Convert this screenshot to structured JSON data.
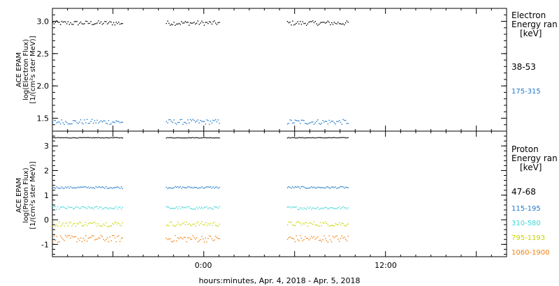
{
  "xlabel": "hours:minutes, Apr.  4, 2018 - Apr.  5, 2018",
  "x_tick_labels": [
    "0:00",
    "12:00"
  ],
  "chart_data": [
    {
      "type": "scatter",
      "panel": "electron",
      "ylabel_lines": [
        "ACE EPAM",
        "log(Electron Flux)",
        "[1/(cm²s ster MeV)]"
      ],
      "ylim": [
        1.3,
        3.2
      ],
      "y_ticks": [
        1.5,
        2.0,
        2.5,
        3.0
      ],
      "y_tick_labels": [
        "1.5",
        "2.0",
        "2.5",
        "3.0"
      ],
      "xlim_hours": [
        -10,
        20
      ],
      "data_intervals_hours": [
        [
          -10,
          -5.4
        ],
        [
          -2.5,
          1.0
        ],
        [
          5.5,
          9.5
        ]
      ],
      "legend": {
        "title_lines": [
          "Electron",
          "Energy ran",
          "[keV]"
        ],
        "placement": "right"
      },
      "series": [
        {
          "name": "38-53",
          "color": "#000000",
          "level": 2.98,
          "spread": 0.035
        },
        {
          "name": "175-315",
          "color": "#1f78c8",
          "level": 1.45,
          "spread": 0.04
        }
      ]
    },
    {
      "type": "scatter",
      "panel": "proton",
      "ylabel_lines": [
        "ACE EPAM",
        "log(Proton Flux)",
        "[1/(cm²s ster MeV)]"
      ],
      "ylim": [
        -1.5,
        3.6
      ],
      "y_ticks": [
        -1,
        0,
        1,
        2,
        3
      ],
      "y_tick_labels": [
        "-1",
        "0",
        "1",
        "2",
        "3"
      ],
      "xlim_hours": [
        -10,
        20
      ],
      "data_intervals_hours": [
        [
          -10,
          -5.4
        ],
        [
          -2.5,
          1.0
        ],
        [
          5.5,
          9.5
        ]
      ],
      "legend": {
        "title_lines": [
          "Proton",
          "Energy ran",
          "[keV]"
        ],
        "placement": "right"
      },
      "series": [
        {
          "name": "47-68",
          "color": "#000000",
          "level": 3.35,
          "spread": 0.01
        },
        {
          "name": "115-195",
          "color": "#1f78c8",
          "level": 1.33,
          "spread": 0.04
        },
        {
          "name": "310-580",
          "color": "#3fd6d6",
          "level": 0.5,
          "spread": 0.06
        },
        {
          "name": "795-1193",
          "color": "#c8d400",
          "level": -0.15,
          "spread": 0.1
        },
        {
          "name": "1060-1900",
          "color": "#f08010",
          "level": -0.75,
          "spread": 0.14
        }
      ]
    }
  ]
}
